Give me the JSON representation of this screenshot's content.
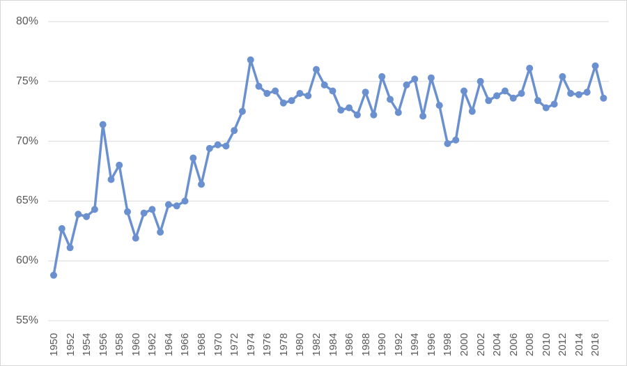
{
  "chart_data": {
    "type": "line",
    "title": "",
    "xlabel": "",
    "ylabel": "",
    "legend": "none",
    "grid": "horizontal",
    "ylim": [
      55,
      80
    ],
    "y_tick_labels": [
      "55%",
      "60%",
      "65%",
      "70%",
      "75%",
      "80%"
    ],
    "x_tick_labels": [
      "1950",
      "1952",
      "1954",
      "1956",
      "1958",
      "1960",
      "1962",
      "1964",
      "1966",
      "1968",
      "1970",
      "1972",
      "1974",
      "1976",
      "1978",
      "1980",
      "1982",
      "1984",
      "1986",
      "1988",
      "1990",
      "1992",
      "1994",
      "1996",
      "1998",
      "2000",
      "2002",
      "2004",
      "2006",
      "2008",
      "2010",
      "2012",
      "2014",
      "2016"
    ],
    "x": [
      1950,
      1951,
      1952,
      1953,
      1954,
      1955,
      1956,
      1957,
      1958,
      1959,
      1960,
      1961,
      1962,
      1963,
      1964,
      1965,
      1966,
      1967,
      1968,
      1969,
      1970,
      1971,
      1972,
      1973,
      1974,
      1975,
      1976,
      1977,
      1978,
      1979,
      1980,
      1981,
      1982,
      1983,
      1984,
      1985,
      1986,
      1987,
      1988,
      1989,
      1990,
      1991,
      1992,
      1993,
      1994,
      1995,
      1996,
      1997,
      1998,
      1999,
      2000,
      2001,
      2002,
      2003,
      2004,
      2005,
      2006,
      2007,
      2008,
      2009,
      2010,
      2011,
      2012,
      2013,
      2014,
      2015,
      2016,
      2017
    ],
    "values": [
      58.8,
      62.7,
      61.1,
      63.9,
      63.7,
      64.3,
      71.4,
      66.8,
      68.0,
      64.1,
      61.9,
      64.0,
      64.3,
      62.4,
      64.7,
      64.6,
      65.0,
      68.6,
      66.4,
      69.4,
      69.7,
      69.6,
      70.9,
      72.5,
      76.8,
      74.6,
      74.0,
      74.2,
      73.2,
      73.4,
      74.0,
      73.8,
      76.0,
      74.7,
      74.2,
      72.6,
      72.8,
      72.2,
      74.1,
      72.2,
      75.4,
      73.5,
      72.4,
      74.7,
      75.2,
      72.1,
      75.3,
      73.0,
      69.8,
      70.1,
      74.2,
      72.5,
      75.0,
      73.4,
      73.8,
      74.2,
      73.6,
      74.0,
      76.1,
      73.4,
      72.8,
      73.1,
      75.4,
      74.0,
      73.9,
      74.1,
      76.3,
      73.6
    ],
    "colors": {
      "line": "#6A90D0",
      "marker": "#6A90D0",
      "gridline": "#D9D9D9",
      "axis_text": "#595959",
      "frame": "#D7D7D7",
      "background": "#FFFFFF"
    }
  }
}
